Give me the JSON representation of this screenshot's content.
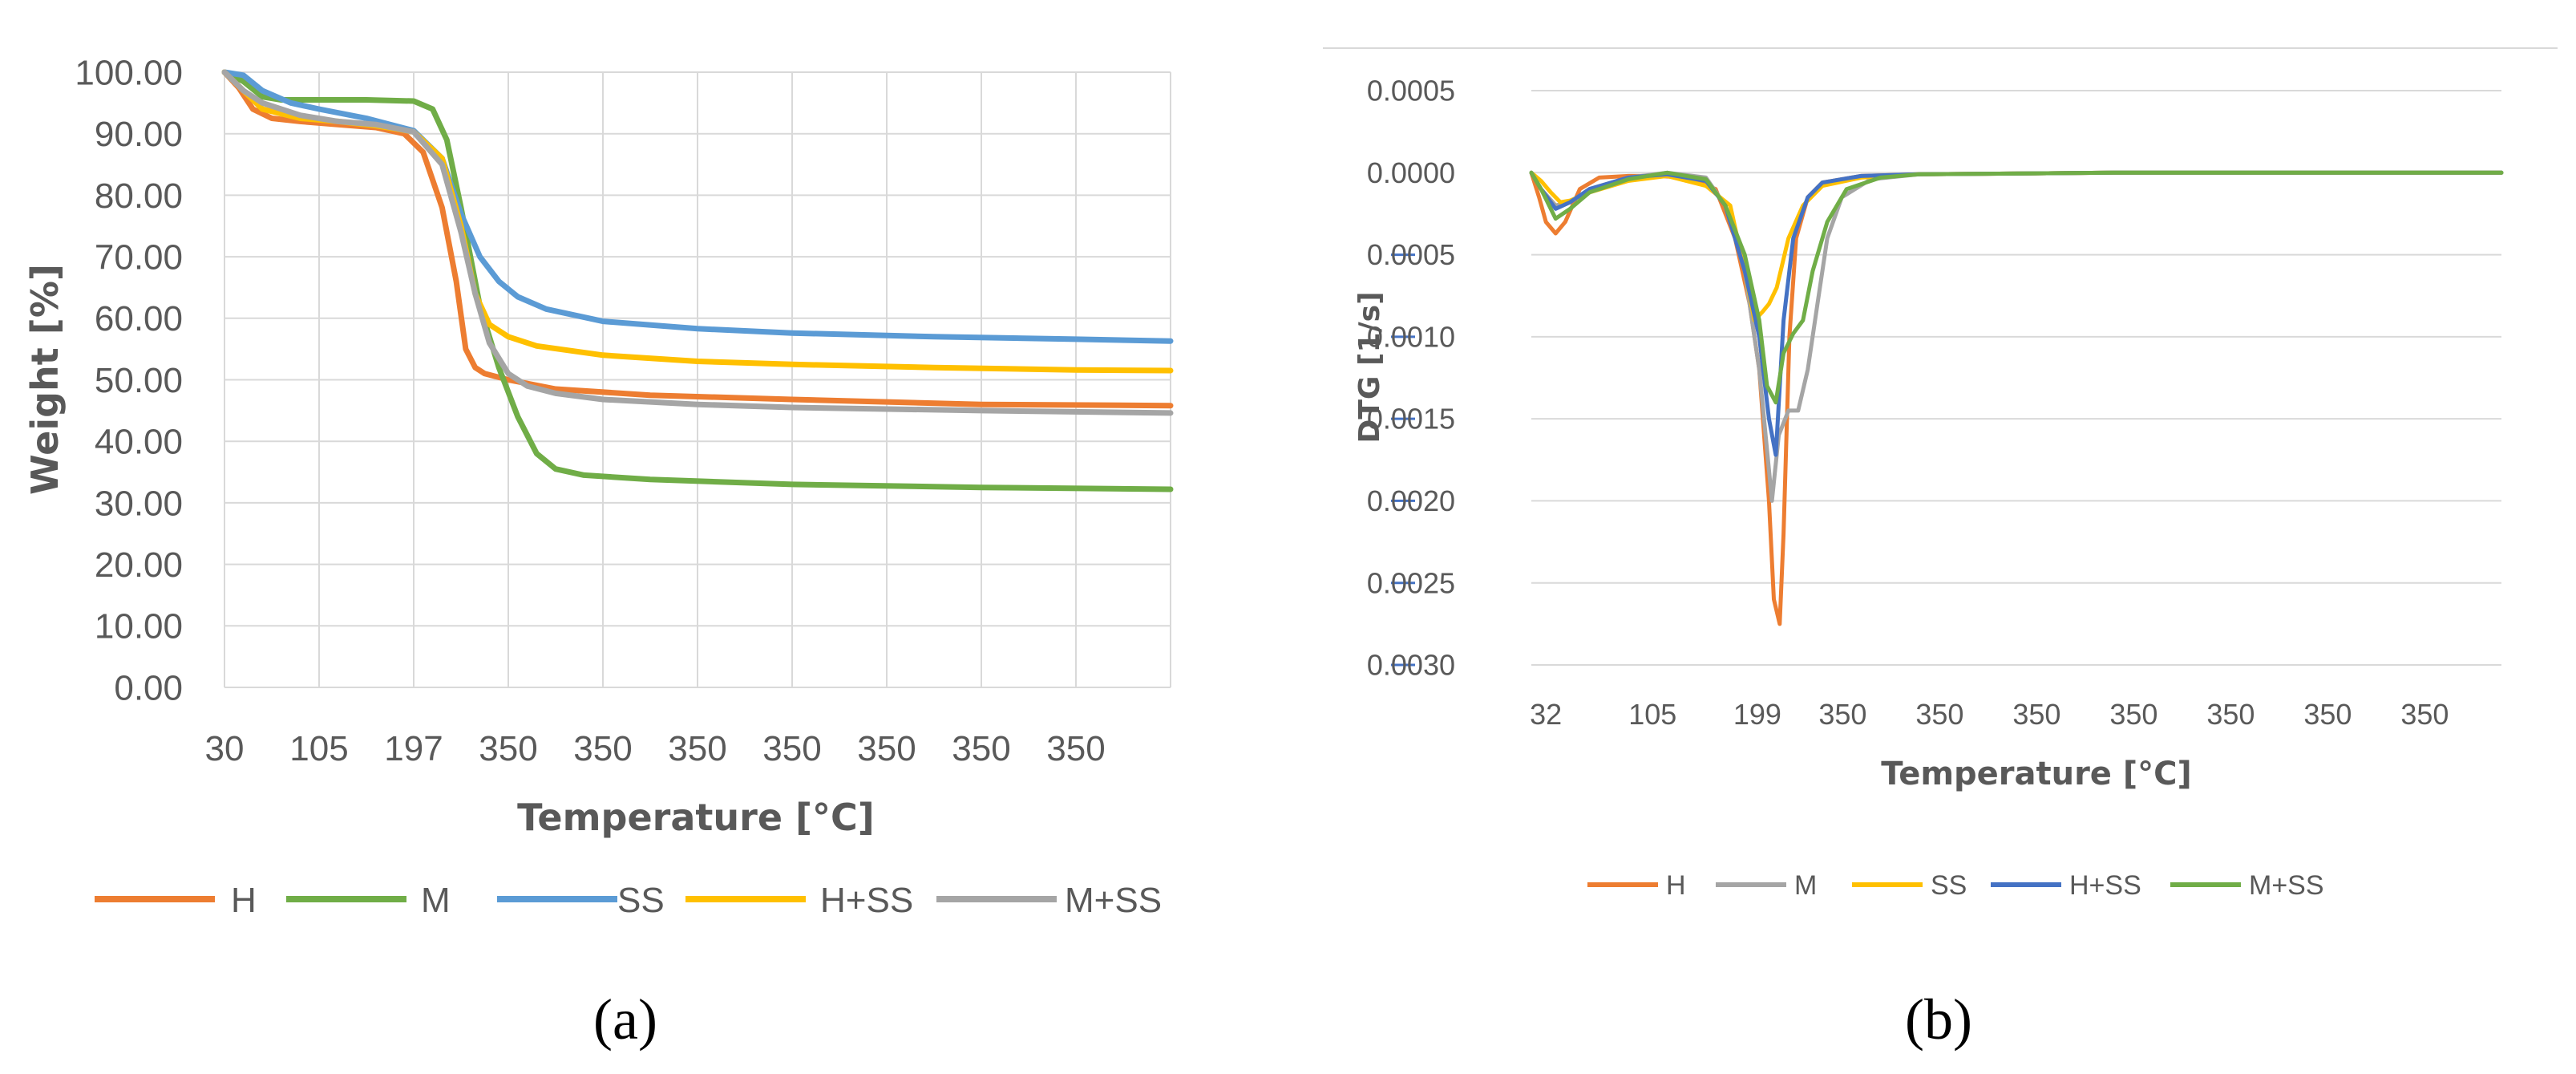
{
  "chart_data": [
    {
      "panel": "(a)",
      "type": "line",
      "title": "",
      "xlabel": "Temperature [°C]",
      "ylabel": "Weight [%]",
      "ylim": [
        0,
        100
      ],
      "xlim": [
        0,
        100
      ],
      "grid": true,
      "legend_position": "bottom",
      "x_ticks": [
        {
          "x": 0,
          "label": "30"
        },
        {
          "x": 10,
          "label": "105"
        },
        {
          "x": 20,
          "label": "197"
        },
        {
          "x": 30,
          "label": "350"
        },
        {
          "x": 40,
          "label": "350"
        },
        {
          "x": 50,
          "label": "350"
        },
        {
          "x": 60,
          "label": "350"
        },
        {
          "x": 70,
          "label": "350"
        },
        {
          "x": 80,
          "label": "350"
        },
        {
          "x": 90,
          "label": "350"
        }
      ],
      "y_ticks": [
        {
          "y": 0,
          "label": "0.00"
        },
        {
          "y": 10,
          "label": "10.00"
        },
        {
          "y": 20,
          "label": "20.00"
        },
        {
          "y": 30,
          "label": "30.00"
        },
        {
          "y": 40,
          "label": "40.00"
        },
        {
          "y": 50,
          "label": "50.00"
        },
        {
          "y": 60,
          "label": "60.00"
        },
        {
          "y": 70,
          "label": "70.00"
        },
        {
          "y": 80,
          "label": "80.00"
        },
        {
          "y": 90,
          "label": "90.00"
        },
        {
          "y": 100,
          "label": "100.00"
        }
      ],
      "series": [
        {
          "name": "H",
          "color": "#ED7D31",
          "x": [
            0,
            1.5,
            3,
            5,
            8,
            12,
            16,
            19,
            21,
            23,
            24.5,
            25.5,
            26.5,
            27.5,
            30,
            35,
            45,
            60,
            80,
            100
          ],
          "y": [
            100,
            97.5,
            94,
            92.5,
            92,
            91.5,
            91,
            90,
            87,
            78,
            66,
            55,
            52,
            51,
            50,
            48.5,
            47.5,
            46.8,
            46,
            45.8
          ]
        },
        {
          "name": "M",
          "color": "#70AD47",
          "x": [
            0,
            2,
            4,
            6,
            10,
            15,
            20,
            22,
            23.5,
            25,
            27,
            29,
            31,
            33,
            35,
            38,
            45,
            60,
            80,
            100
          ],
          "y": [
            100,
            98.5,
            96,
            95.5,
            95.5,
            95.5,
            95.3,
            94,
            89,
            78,
            62,
            52,
            44,
            38,
            35.5,
            34.5,
            33.8,
            33,
            32.5,
            32.2
          ]
        },
        {
          "name": "SS",
          "color": "#5B9BD5",
          "x": [
            0,
            2,
            4,
            7,
            10,
            15,
            20,
            23,
            25,
            27,
            29,
            31,
            34,
            40,
            50,
            60,
            75,
            90,
            100
          ],
          "y": [
            100,
            99.5,
            97,
            95,
            94,
            92.5,
            90.5,
            86,
            77,
            70,
            66,
            63.5,
            61.5,
            59.5,
            58.3,
            57.6,
            57,
            56.6,
            56.3
          ]
        },
        {
          "name": "H+SS",
          "color": "#FFC000",
          "x": [
            0,
            2,
            4,
            8,
            12,
            16,
            20,
            23,
            25,
            26.5,
            28,
            30,
            33,
            40,
            50,
            60,
            75,
            90,
            100
          ],
          "y": [
            100,
            97,
            94,
            92.5,
            92,
            91.3,
            90.3,
            86,
            75,
            64,
            59,
            57,
            55.5,
            54,
            53,
            52.5,
            52,
            51.6,
            51.5
          ]
        },
        {
          "name": "M+SS",
          "color": "#A5A5A5",
          "x": [
            0,
            2,
            4,
            8,
            12,
            16,
            20,
            23,
            25,
            26.5,
            28,
            30,
            32,
            35,
            40,
            50,
            60,
            80,
            100
          ],
          "y": [
            100,
            97,
            95,
            93,
            92,
            91.5,
            90.3,
            85,
            74,
            64,
            56,
            51,
            49,
            47.8,
            46.8,
            46,
            45.5,
            45,
            44.6
          ]
        }
      ]
    },
    {
      "panel": "(b)",
      "type": "line",
      "title": "",
      "xlabel": "Temperature [°C]",
      "ylabel": "DTG [1/s]",
      "ylim": [
        -0.003,
        0.0005
      ],
      "xlim": [
        0,
        100
      ],
      "grid": true,
      "legend_position": "bottom",
      "x_ticks": [
        {
          "x": 1.5,
          "label": "32"
        },
        {
          "x": 12.5,
          "label": "105"
        },
        {
          "x": 23.3,
          "label": "199"
        },
        {
          "x": 32.1,
          "label": "350"
        },
        {
          "x": 42.1,
          "label": "350"
        },
        {
          "x": 52.1,
          "label": "350"
        },
        {
          "x": 62.1,
          "label": "350"
        },
        {
          "x": 72.1,
          "label": "350"
        },
        {
          "x": 82.1,
          "label": "350"
        },
        {
          "x": 92.1,
          "label": "350"
        }
      ],
      "y_ticks": [
        {
          "y": 0.0005,
          "label": "0.0005"
        },
        {
          "y": 0,
          "label": "0.0000"
        },
        {
          "y": -0.0005,
          "label": "-0.0005"
        },
        {
          "y": -0.001,
          "label": "-0.0010"
        },
        {
          "y": -0.0015,
          "label": "-0.0015"
        },
        {
          "y": -0.002,
          "label": "-0.0020"
        },
        {
          "y": -0.0025,
          "label": "-0.0025"
        },
        {
          "y": -0.003,
          "label": "-0.0030"
        }
      ],
      "series": [
        {
          "name": "H",
          "color": "#ED7D31",
          "x": [
            0,
            0.8,
            1.5,
            2.5,
            3.5,
            5,
            7,
            10,
            13,
            16,
            19,
            21,
            22.5,
            23.5,
            24.5,
            25,
            25.6,
            26,
            26.6,
            27.3,
            28.5,
            30,
            34,
            40,
            60,
            100
          ],
          "y": [
            0,
            -0.00015,
            -0.0003,
            -0.00037,
            -0.0003,
            -0.0001,
            -3e-05,
            -2e-05,
            -2e-05,
            -3e-05,
            -0.0001,
            -0.0004,
            -0.0008,
            -0.0012,
            -0.002,
            -0.0026,
            -0.00275,
            -0.0022,
            -0.001,
            -0.0004,
            -0.00015,
            -6e-05,
            -2e-05,
            -1e-05,
            0,
            0
          ]
        },
        {
          "name": "M",
          "color": "#A5A5A5",
          "x": [
            0,
            1,
            2.5,
            4,
            6,
            10,
            14,
            18,
            20,
            22,
            23.5,
            24.8,
            25.5,
            26.5,
            27.5,
            28.5,
            29.5,
            30.5,
            32,
            35,
            40,
            60,
            100
          ],
          "y": [
            0,
            -0.0001,
            -0.0002,
            -0.00018,
            -0.0001,
            -3e-05,
            0,
            -3e-05,
            -0.0002,
            -0.0006,
            -0.0012,
            -0.002,
            -0.0016,
            -0.00145,
            -0.00145,
            -0.0012,
            -0.0008,
            -0.0004,
            -0.00015,
            -4e-05,
            -1e-05,
            0,
            0
          ]
        },
        {
          "name": "SS",
          "color": "#FFC000",
          "x": [
            0,
            1,
            2,
            3,
            4,
            6,
            10,
            14,
            18,
            20.5,
            22,
            23,
            23.8,
            24.5,
            25.3,
            26.5,
            28,
            30,
            34,
            40,
            60,
            100
          ],
          "y": [
            0,
            -5e-05,
            -0.00012,
            -0.00018,
            -0.00017,
            -0.00012,
            -5e-05,
            -2e-05,
            -8e-05,
            -0.0002,
            -0.0006,
            -0.0009,
            -0.00085,
            -0.0008,
            -0.0007,
            -0.0004,
            -0.0002,
            -8e-05,
            -3e-05,
            -1e-05,
            0,
            0
          ]
        },
        {
          "name": "H+SS",
          "color": "#4472C4",
          "x": [
            0,
            1,
            2.5,
            4,
            6,
            10,
            14,
            18,
            20,
            22,
            23.5,
            24.5,
            25.2,
            26,
            27,
            28.5,
            30,
            34,
            40,
            60,
            100
          ],
          "y": [
            0,
            -0.0001,
            -0.00022,
            -0.00018,
            -0.0001,
            -3e-05,
            -1e-05,
            -5e-05,
            -0.0002,
            -0.0006,
            -0.001,
            -0.0015,
            -0.00172,
            -0.0009,
            -0.0004,
            -0.00015,
            -6e-05,
            -2e-05,
            -1e-05,
            0,
            0
          ]
        },
        {
          "name": "M+SS",
          "color": "#70AD47",
          "x": [
            0,
            1,
            2.5,
            4,
            6,
            10,
            14,
            18,
            20,
            22,
            23.5,
            24.3,
            25.2,
            26,
            27,
            28,
            29,
            30.5,
            32.5,
            36,
            40,
            60,
            100
          ],
          "y": [
            0,
            -0.0001,
            -0.00028,
            -0.00022,
            -0.00012,
            -4e-05,
            0,
            -4e-05,
            -0.0002,
            -0.0005,
            -0.0009,
            -0.0013,
            -0.0014,
            -0.0011,
            -0.00098,
            -0.0009,
            -0.0006,
            -0.0003,
            -0.0001,
            -3e-05,
            -1e-05,
            0,
            0
          ]
        }
      ]
    }
  ]
}
